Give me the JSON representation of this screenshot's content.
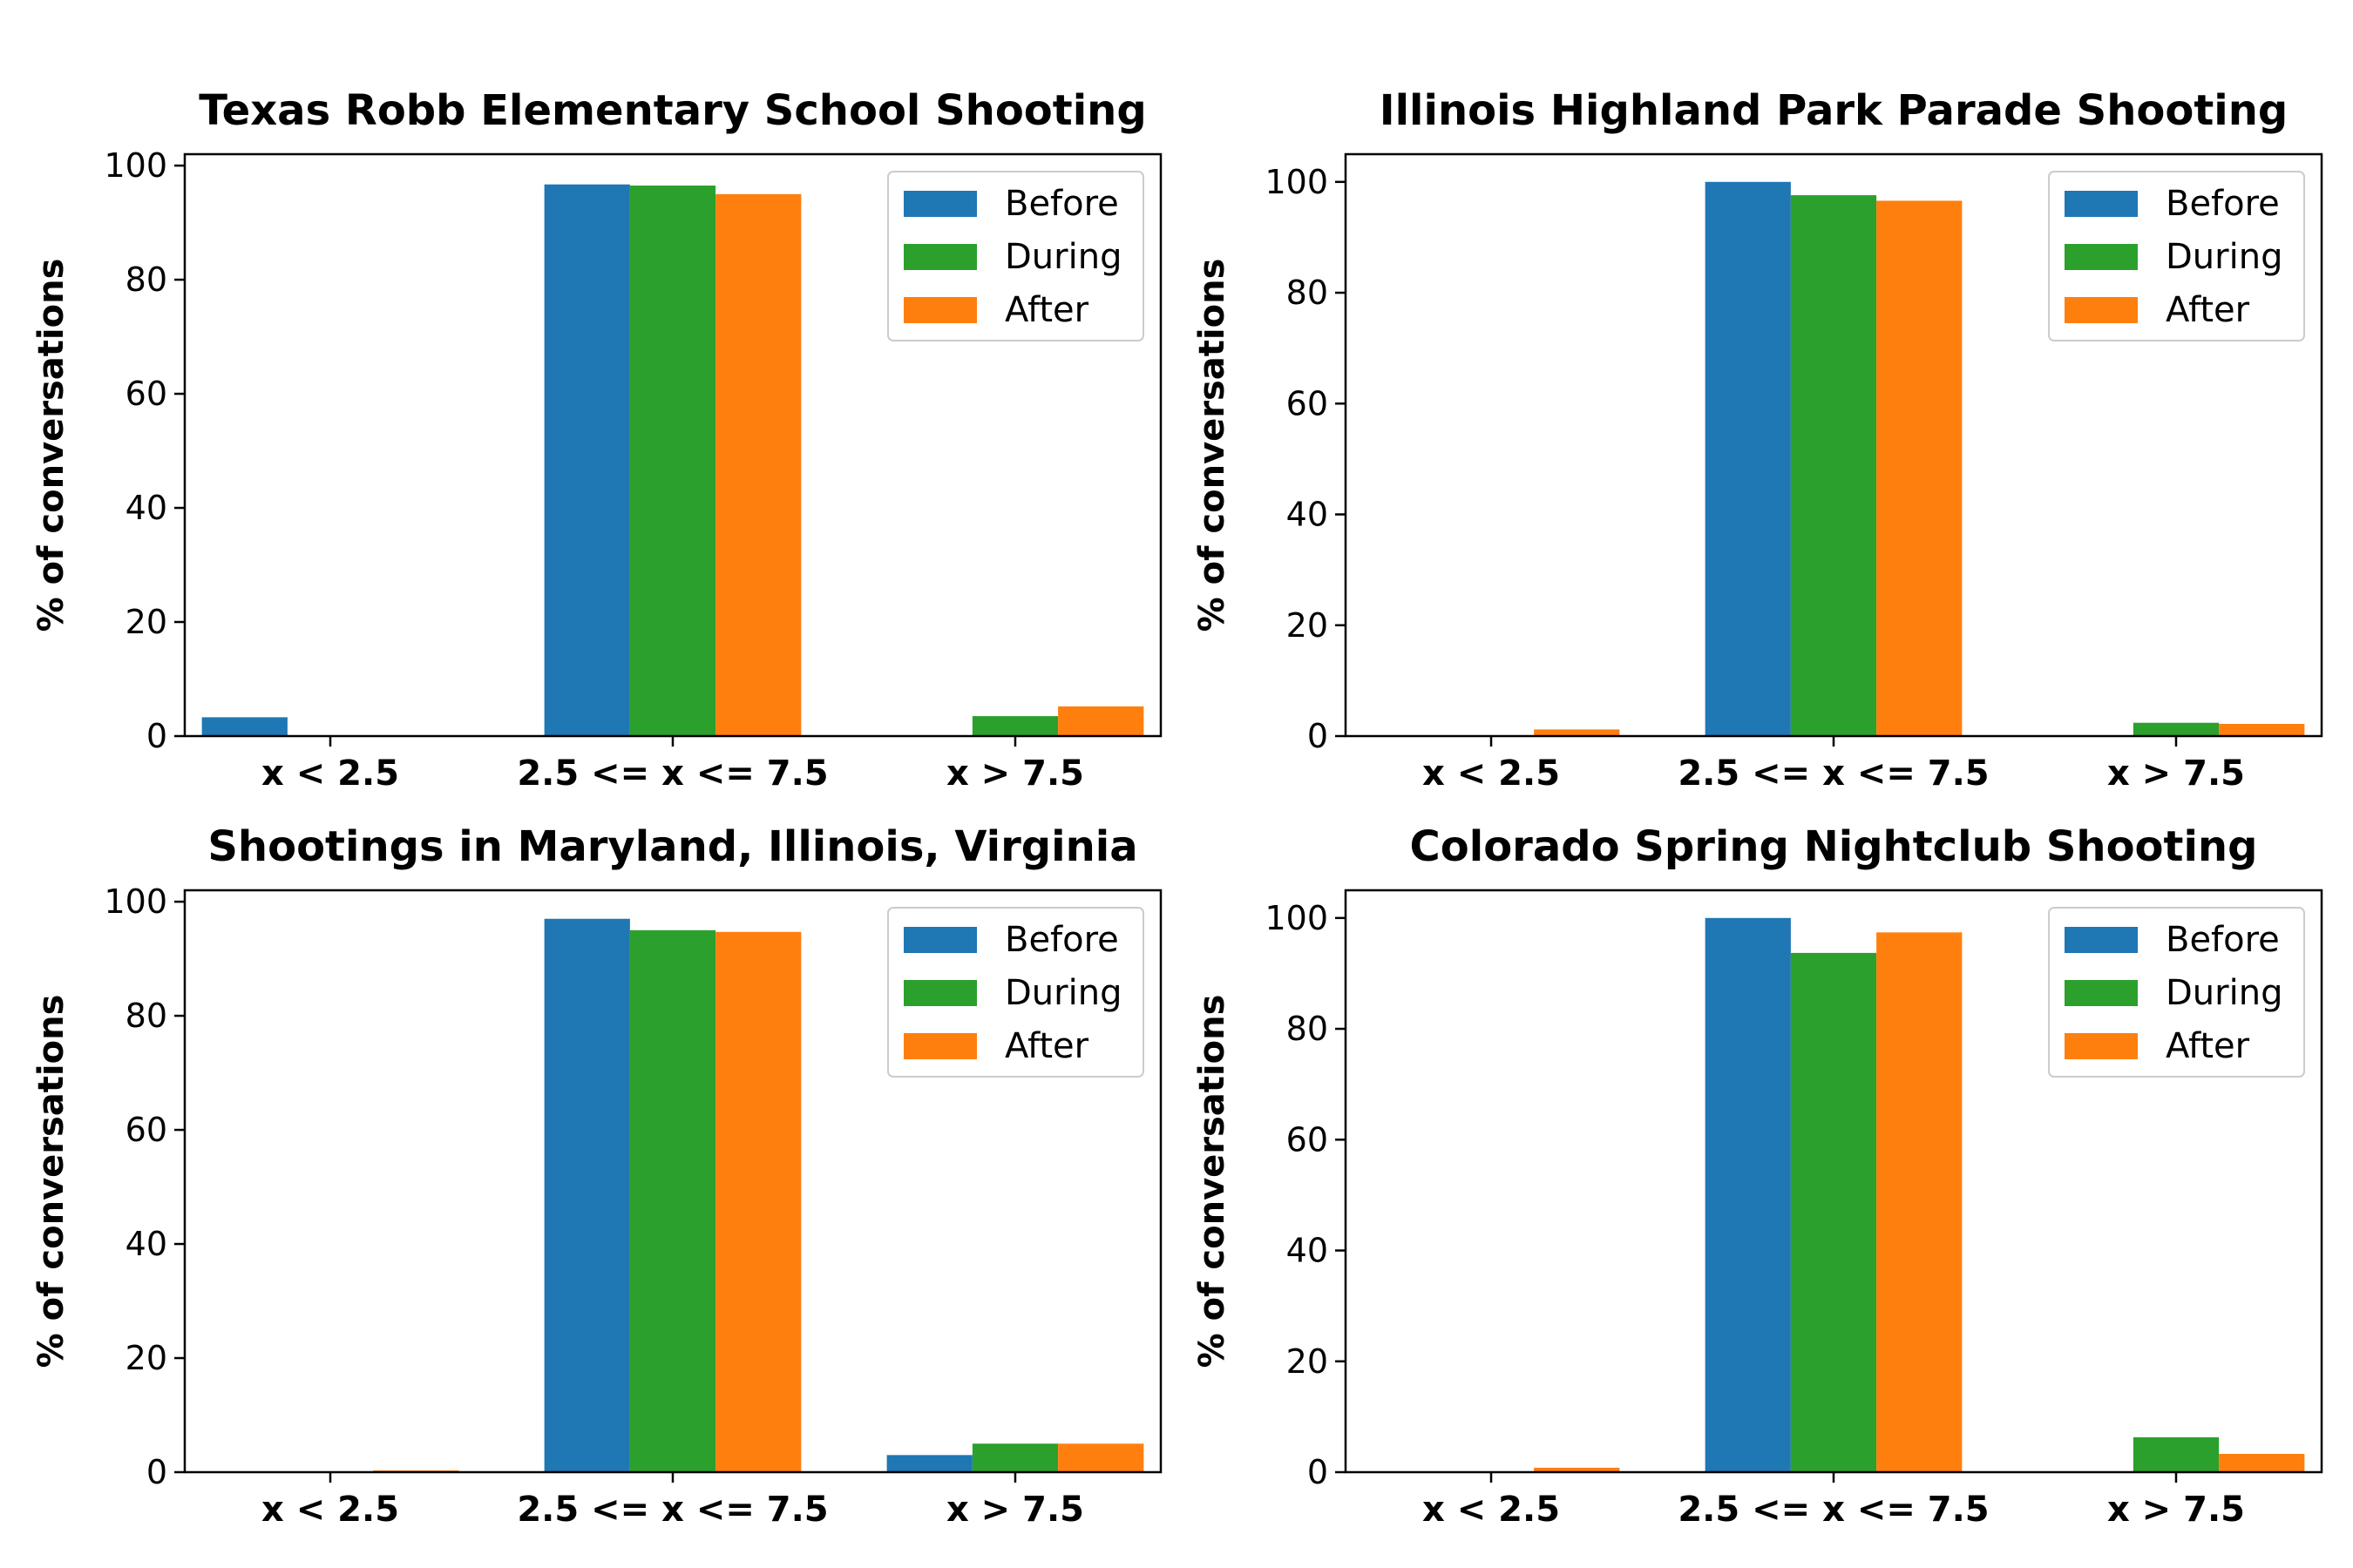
{
  "chart_data": [
    {
      "type": "bar",
      "title": "Texas Robb Elementary School Shooting",
      "ylabel": "% of conversations",
      "xlabel": "",
      "categories": [
        "x < 2.5",
        "2.5 <= x <= 7.5",
        "x > 7.5"
      ],
      "ylim": [
        0,
        102
      ],
      "yticks": [
        0,
        20,
        40,
        60,
        80,
        100
      ],
      "legend_position": "top-right",
      "series": [
        {
          "name": "Before",
          "color": "#1f77b4",
          "values": [
            3.3,
            96.7,
            0
          ]
        },
        {
          "name": "During",
          "color": "#2ca02c",
          "values": [
            0,
            96.5,
            3.5
          ]
        },
        {
          "name": "After",
          "color": "#ff7f0e",
          "values": [
            0,
            95.0,
            5.2
          ]
        }
      ]
    },
    {
      "type": "bar",
      "title": "Illinois Highland Park Parade Shooting",
      "ylabel": "% of conversations",
      "xlabel": "",
      "categories": [
        "x < 2.5",
        "2.5 <= x <= 7.5",
        "x > 7.5"
      ],
      "ylim": [
        0,
        105
      ],
      "yticks": [
        0,
        20,
        40,
        60,
        80,
        100
      ],
      "legend_position": "top-right",
      "series": [
        {
          "name": "Before",
          "color": "#1f77b4",
          "values": [
            0,
            100,
            0
          ]
        },
        {
          "name": "During",
          "color": "#2ca02c",
          "values": [
            0,
            97.6,
            2.4
          ]
        },
        {
          "name": "After",
          "color": "#ff7f0e",
          "values": [
            1.2,
            96.6,
            2.2
          ]
        }
      ]
    },
    {
      "type": "bar",
      "title": "Shootings in Maryland, Illinois, Virginia",
      "ylabel": "% of conversations",
      "xlabel": "",
      "categories": [
        "x < 2.5",
        "2.5 <= x <= 7.5",
        "x > 7.5"
      ],
      "ylim": [
        0,
        102
      ],
      "yticks": [
        0,
        20,
        40,
        60,
        80,
        100
      ],
      "legend_position": "top-right",
      "series": [
        {
          "name": "Before",
          "color": "#1f77b4",
          "values": [
            0,
            97.0,
            3.0
          ]
        },
        {
          "name": "During",
          "color": "#2ca02c",
          "values": [
            0,
            95.0,
            5.0
          ]
        },
        {
          "name": "After",
          "color": "#ff7f0e",
          "values": [
            0.3,
            94.7,
            5.0
          ]
        }
      ]
    },
    {
      "type": "bar",
      "title": "Colorado Spring Nightclub Shooting",
      "ylabel": "% of conversations",
      "xlabel": "",
      "categories": [
        "x < 2.5",
        "2.5 <= x <= 7.5",
        "x > 7.5"
      ],
      "ylim": [
        0,
        105
      ],
      "yticks": [
        0,
        20,
        40,
        60,
        80,
        100
      ],
      "legend_position": "top-right",
      "series": [
        {
          "name": "Before",
          "color": "#1f77b4",
          "values": [
            0,
            100,
            0
          ]
        },
        {
          "name": "During",
          "color": "#2ca02c",
          "values": [
            0,
            93.7,
            6.3
          ]
        },
        {
          "name": "After",
          "color": "#ff7f0e",
          "values": [
            0.8,
            97.4,
            3.3
          ]
        }
      ]
    }
  ]
}
